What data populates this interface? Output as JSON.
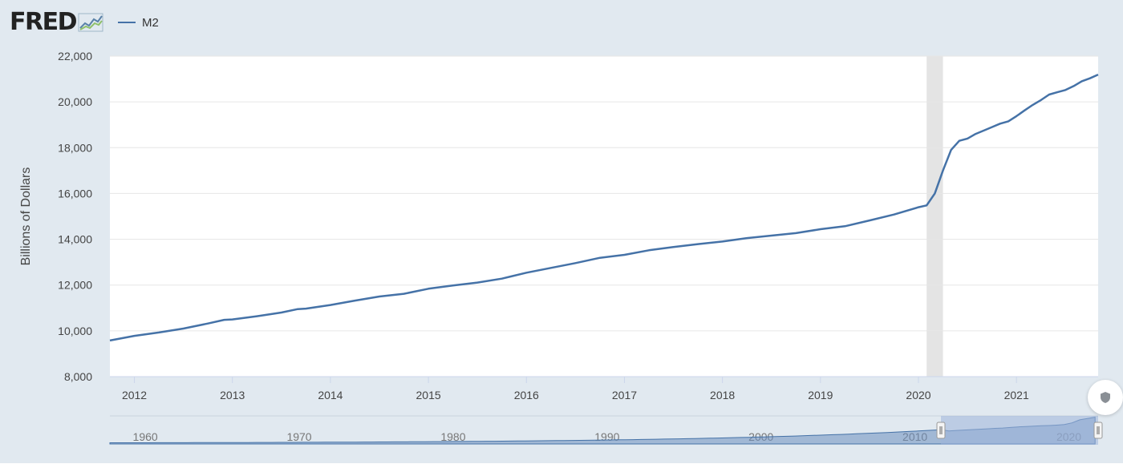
{
  "header": {
    "logo": "FRED",
    "legend_label": "M2"
  },
  "colors": {
    "series": "#4572a7",
    "background": "#e1e9f0",
    "plot_bg": "#ffffff",
    "recession": "#e4e4e4"
  },
  "chart_data": {
    "type": "line",
    "title": "",
    "xlabel": "",
    "ylabel": "Billions of Dollars",
    "ylim": [
      8000,
      22000
    ],
    "y_ticks": [
      "8,000",
      "10,000",
      "12,000",
      "14,000",
      "16,000",
      "18,000",
      "20,000",
      "22,000"
    ],
    "x_ticks": [
      "2012",
      "2013",
      "2014",
      "2015",
      "2016",
      "2017",
      "2018",
      "2019",
      "2020",
      "2021"
    ],
    "xlim": [
      "2011-10",
      "2021-11"
    ],
    "grid": true,
    "recession_band": [
      "2020-02",
      "2020-04"
    ],
    "series": [
      {
        "name": "M2",
        "x": [
          "2011-10",
          "2012-01",
          "2012-04",
          "2012-07",
          "2012-10",
          "2012-12",
          "2013-01",
          "2013-04",
          "2013-07",
          "2013-09",
          "2013-10",
          "2014-01",
          "2014-04",
          "2014-07",
          "2014-10",
          "2015-01",
          "2015-04",
          "2015-07",
          "2015-10",
          "2016-01",
          "2016-04",
          "2016-07",
          "2016-10",
          "2017-01",
          "2017-04",
          "2017-07",
          "2017-10",
          "2018-01",
          "2018-04",
          "2018-07",
          "2018-10",
          "2019-01",
          "2019-04",
          "2019-07",
          "2019-10",
          "2020-01",
          "2020-02",
          "2020-03",
          "2020-04",
          "2020-05",
          "2020-06",
          "2020-07",
          "2020-08",
          "2020-09",
          "2020-10",
          "2020-11",
          "2020-12",
          "2021-01",
          "2021-02",
          "2021-03",
          "2021-04",
          "2021-05",
          "2021-06",
          "2021-07",
          "2021-08",
          "2021-09",
          "2021-10",
          "2021-11"
        ],
        "values": [
          9580,
          9780,
          9930,
          10100,
          10320,
          10480,
          10500,
          10640,
          10800,
          10950,
          10970,
          11130,
          11320,
          11500,
          11620,
          11840,
          11980,
          12110,
          12280,
          12540,
          12750,
          12960,
          13190,
          13320,
          13520,
          13660,
          13790,
          13900,
          14050,
          14160,
          14270,
          14440,
          14570,
          14820,
          15080,
          15400,
          15480,
          16000,
          17000,
          17900,
          18300,
          18400,
          18600,
          18750,
          18900,
          19050,
          19150,
          19380,
          19630,
          19870,
          20080,
          20320,
          20420,
          20520,
          20690,
          20900,
          21030,
          21190
        ]
      }
    ],
    "navigator": {
      "x_ticks": [
        "1960",
        "1970",
        "1980",
        "1990",
        "2000",
        "2010",
        "2020"
      ]
    }
  }
}
